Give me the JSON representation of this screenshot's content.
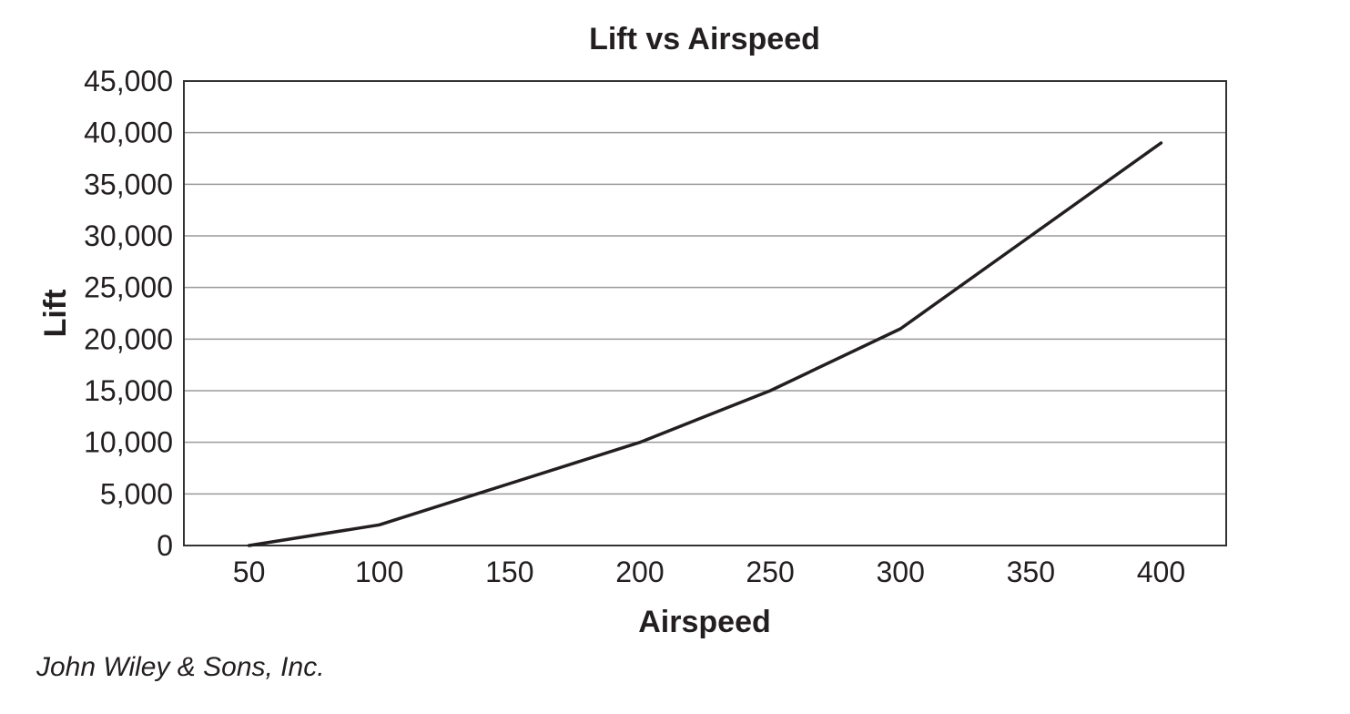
{
  "chart_data": {
    "type": "line",
    "title": "Lift vs Airspeed",
    "xlabel": "Airspeed",
    "ylabel": "Lift",
    "x": [
      50,
      100,
      150,
      200,
      250,
      300,
      350,
      400
    ],
    "x_ticks": [
      "50",
      "100",
      "150",
      "200",
      "250",
      "300",
      "350",
      "400"
    ],
    "y_ticks": [
      "0",
      "5,000",
      "10,000",
      "15,000",
      "20,000",
      "25,000",
      "30,000",
      "35,000",
      "40,000",
      "45,000"
    ],
    "ylim": [
      0,
      45000
    ],
    "xlim": [
      25,
      425
    ],
    "grid": true,
    "series": [
      {
        "values": [
          0,
          2000,
          6000,
          10000,
          15000,
          21000,
          30000,
          39000
        ],
        "color": "#231f20"
      }
    ]
  },
  "credit": "John Wiley & Sons, Inc."
}
